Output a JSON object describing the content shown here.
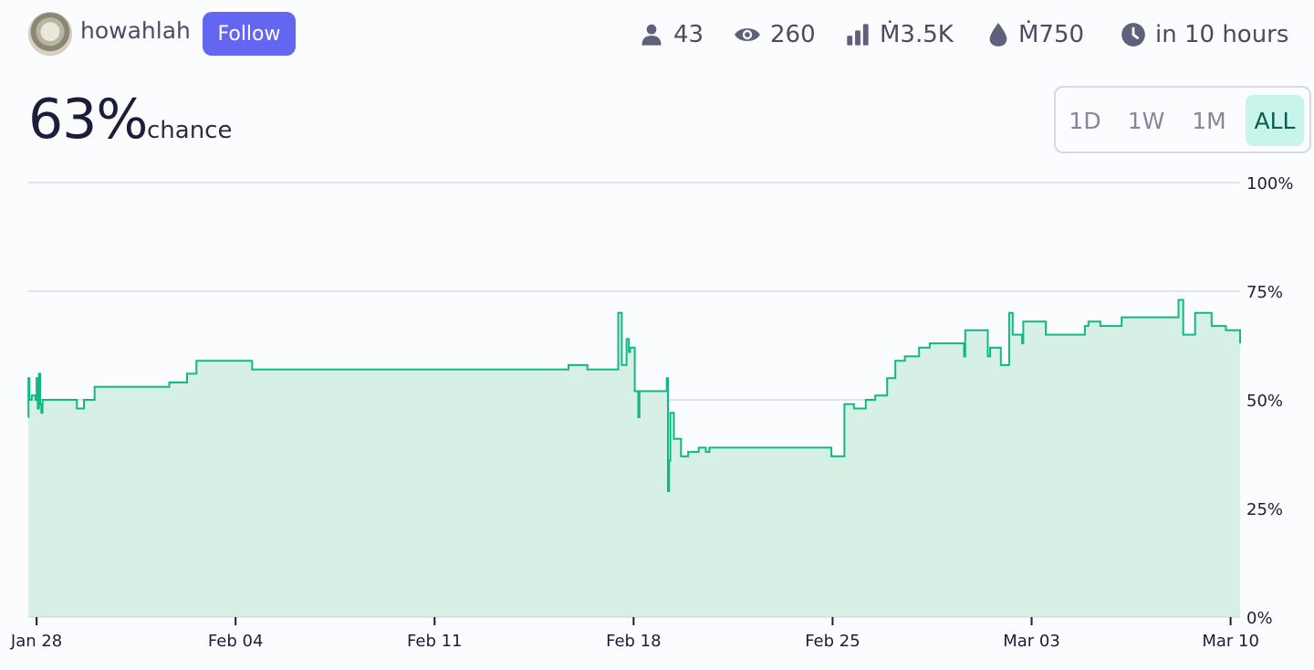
{
  "header": {
    "username": "howahlah",
    "follow_label": "Follow",
    "stats": {
      "traders": "43",
      "views": "260",
      "volume": "Ṁ3.5K",
      "liquidity": "Ṁ750",
      "closes": "in 10 hours"
    }
  },
  "probability": {
    "value": "63%",
    "label": "chance"
  },
  "range_buttons": [
    "1D",
    "1W",
    "1M",
    "ALL"
  ],
  "range_selected": "ALL",
  "icons": [
    "user-icon",
    "eye-icon",
    "bar-chart-icon",
    "droplet-icon",
    "clock-icon"
  ],
  "colors": {
    "accent": "#6366f1",
    "line": "#11b981",
    "area": "#d7f0e6",
    "selected": "#c8f4ec"
  },
  "chart_data": {
    "type": "area",
    "step": true,
    "ylim": [
      0,
      100
    ],
    "yticks": [
      0,
      25,
      50,
      75,
      100
    ],
    "ytick_labels": [
      "0%",
      "25%",
      "50%",
      "75%",
      "100%"
    ],
    "xlim": [
      "2024-01-27T17:00",
      "2024-03-10T08:00"
    ],
    "xticks": [
      "2024-01-28",
      "2024-02-04",
      "2024-02-11",
      "2024-02-18",
      "2024-02-25",
      "2024-03-03",
      "2024-03-10"
    ],
    "xtick_labels": [
      "Jan 28",
      "Feb 04",
      "Feb 11",
      "Feb 18",
      "Feb 25",
      "Mar 03",
      "Mar 10"
    ],
    "grid": true,
    "x": [
      "2024-01-27T17:00",
      "2024-01-27T17:10",
      "2024-01-27T18:00",
      "2024-01-27T20:00",
      "2024-01-27T23:00",
      "2024-01-28T00:00",
      "2024-01-28T01:00",
      "2024-01-28T02:00",
      "2024-01-28T03:00",
      "2024-01-28T04:00",
      "2024-01-28T05:00",
      "2024-01-28T06:00",
      "2024-01-29T10:00",
      "2024-01-29T16:00",
      "2024-01-30T01:00",
      "2024-02-01T16:00",
      "2024-02-02T07:00",
      "2024-02-02T15:00",
      "2024-02-04T14:00",
      "2024-02-15T17:00",
      "2024-02-16T09:00",
      "2024-02-17T11:00",
      "2024-02-17T14:00",
      "2024-02-17T18:00",
      "2024-02-17T20:00",
      "2024-02-17T21:00",
      "2024-02-18T01:00",
      "2024-02-18T04:00",
      "2024-02-18T05:00",
      "2024-02-18T06:00",
      "2024-02-19T04:00",
      "2024-02-19T05:00",
      "2024-02-19T06:00",
      "2024-02-19T07:00",
      "2024-02-19T10:00",
      "2024-02-19T16:00",
      "2024-02-19T22:00",
      "2024-02-20T07:00",
      "2024-02-20T11:00",
      "2024-02-20T13:00",
      "2024-02-20T16:00",
      "2024-02-23T19:00",
      "2024-02-24T23:00",
      "2024-02-25T10:00",
      "2024-02-25T18:00",
      "2024-02-26T04:00",
      "2024-02-26T12:00",
      "2024-02-26T22:00",
      "2024-02-27T05:00",
      "2024-02-27T13:00",
      "2024-02-28T01:00",
      "2024-02-28T10:00",
      "2024-02-29T15:00",
      "2024-02-29T16:00",
      "2024-03-01T11:00",
      "2024-03-01T13:00",
      "2024-03-01T22:00",
      "2024-03-02T05:00",
      "2024-03-02T08:00",
      "2024-03-02T16:00",
      "2024-03-02T17:00",
      "2024-03-03T12:00",
      "2024-03-04T21:00",
      "2024-03-05T00:00",
      "2024-03-05T10:00",
      "2024-03-06T04:00",
      "2024-03-08T04:00",
      "2024-03-08T08:00",
      "2024-03-08T18:00",
      "2024-03-09T08:00",
      "2024-03-09T20:00",
      "2024-03-10T08:00"
    ],
    "y": [
      46,
      55,
      50,
      51,
      50,
      55,
      48,
      56,
      49,
      47,
      50,
      50,
      48,
      50,
      53,
      54,
      56,
      59,
      57,
      58,
      57,
      70,
      58,
      64,
      61,
      62,
      52,
      46,
      52,
      52,
      55,
      29,
      36,
      47,
      41,
      37,
      38,
      39,
      39,
      38,
      39,
      39,
      37,
      49,
      48,
      50,
      51,
      55,
      59,
      60,
      62,
      63,
      60,
      66,
      60,
      62,
      58,
      70,
      65,
      63,
      68,
      65,
      67,
      68,
      67,
      69,
      73,
      65,
      70,
      67,
      66,
      63
    ],
    "series": [
      {
        "values_ref": "y"
      }
    ]
  }
}
